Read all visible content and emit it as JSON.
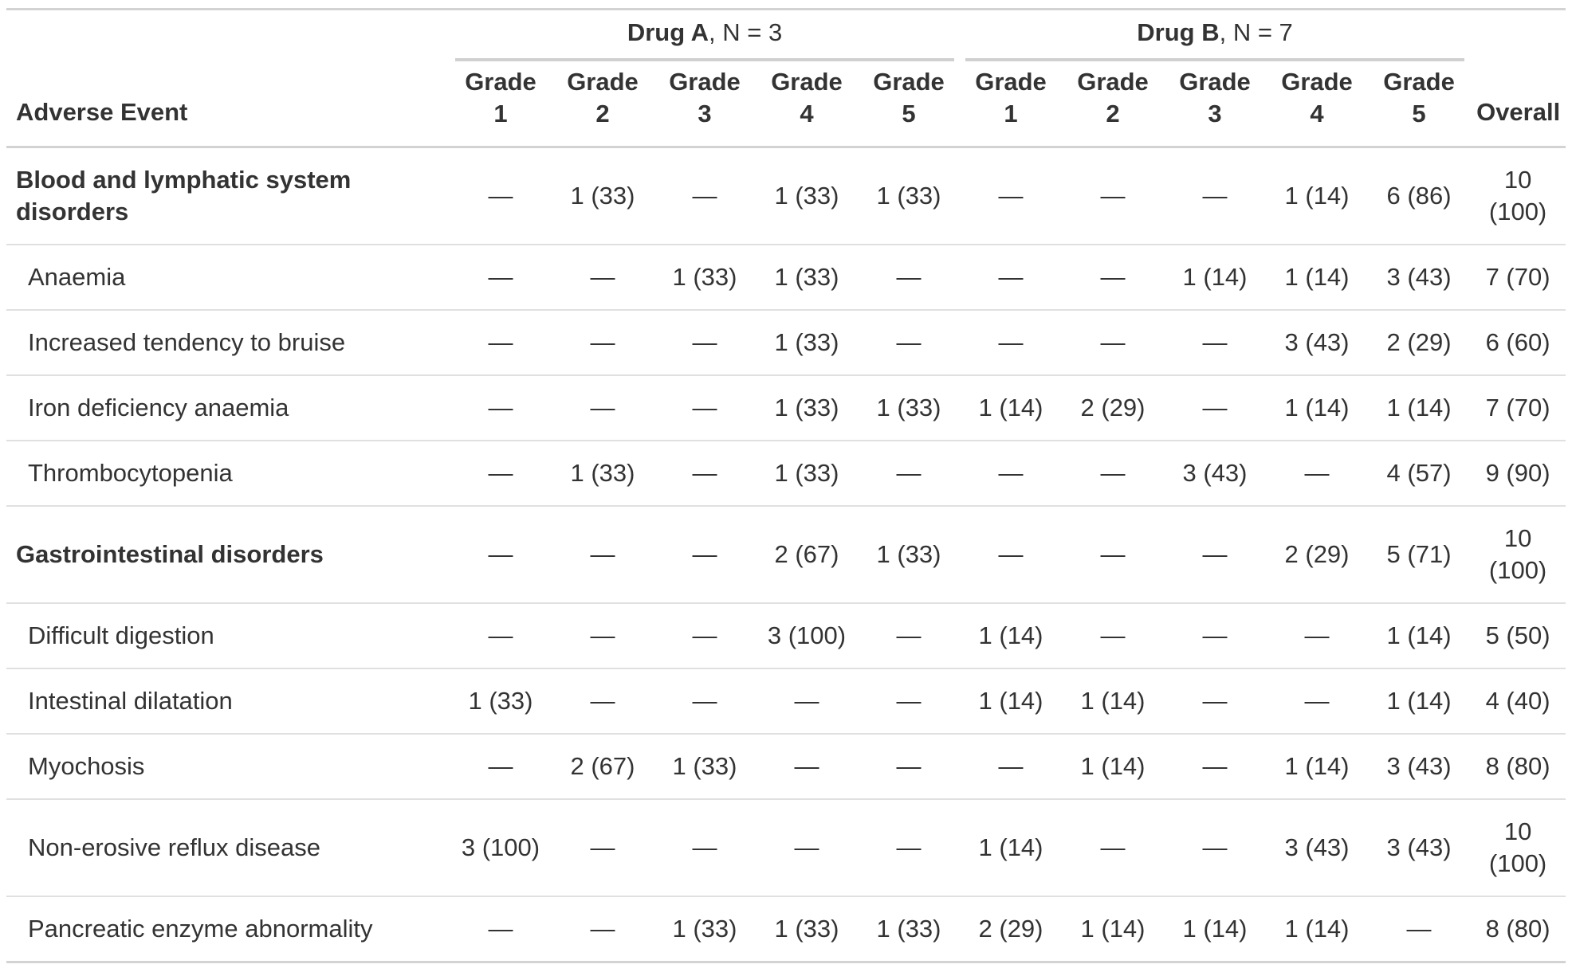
{
  "colors": {
    "text": "#333333",
    "major_rule": "#d3d3d3",
    "row_divider": "#e0e0e0",
    "spanner_rule": "#d0d0d0"
  },
  "chart_data": {
    "type": "table",
    "stub_header": "Adverse Event",
    "overall_header": "Overall",
    "grade_word": "Grade",
    "grade_numbers": [
      "1",
      "2",
      "3",
      "4",
      "5",
      "1",
      "2",
      "3",
      "4",
      "5"
    ],
    "spanners": [
      {
        "label_bold": "Drug A",
        "label_rest": ", N = 3"
      },
      {
        "label_bold": "Drug B",
        "label_rest": ", N = 7"
      }
    ],
    "rows": [
      {
        "label": "Blood and lymphatic system disorders",
        "group": true,
        "values": [
          "—",
          "1 (33)",
          "—",
          "1 (33)",
          "1 (33)",
          "—",
          "—",
          "—",
          "1 (14)",
          "6 (86)",
          "10 (100)"
        ]
      },
      {
        "label": "Anaemia",
        "group": false,
        "values": [
          "—",
          "—",
          "1 (33)",
          "1 (33)",
          "—",
          "—",
          "—",
          "1 (14)",
          "1 (14)",
          "3 (43)",
          "7 (70)"
        ]
      },
      {
        "label": "Increased tendency to bruise",
        "group": false,
        "values": [
          "—",
          "—",
          "—",
          "1 (33)",
          "—",
          "—",
          "—",
          "—",
          "3 (43)",
          "2 (29)",
          "6 (60)"
        ]
      },
      {
        "label": "Iron deficiency anaemia",
        "group": false,
        "values": [
          "—",
          "—",
          "—",
          "1 (33)",
          "1 (33)",
          "1 (14)",
          "2 (29)",
          "—",
          "1 (14)",
          "1 (14)",
          "7 (70)"
        ]
      },
      {
        "label": "Thrombocytopenia",
        "group": false,
        "values": [
          "—",
          "1 (33)",
          "—",
          "1 (33)",
          "—",
          "—",
          "—",
          "3 (43)",
          "—",
          "4 (57)",
          "9 (90)"
        ]
      },
      {
        "label": "Gastrointestinal disorders",
        "group": true,
        "values": [
          "—",
          "—",
          "—",
          "2 (67)",
          "1 (33)",
          "—",
          "—",
          "—",
          "2 (29)",
          "5 (71)",
          "10 (100)"
        ]
      },
      {
        "label": "Difficult digestion",
        "group": false,
        "values": [
          "—",
          "—",
          "—",
          "3 (100)",
          "—",
          "1 (14)",
          "—",
          "—",
          "—",
          "1 (14)",
          "5 (50)"
        ]
      },
      {
        "label": "Intestinal dilatation",
        "group": false,
        "values": [
          "1 (33)",
          "—",
          "—",
          "—",
          "—",
          "1 (14)",
          "1 (14)",
          "—",
          "—",
          "1 (14)",
          "4 (40)"
        ]
      },
      {
        "label": "Myochosis",
        "group": false,
        "values": [
          "—",
          "2 (67)",
          "1 (33)",
          "—",
          "—",
          "—",
          "1 (14)",
          "—",
          "1 (14)",
          "3 (43)",
          "8 (80)"
        ]
      },
      {
        "label": "Non-erosive reflux disease",
        "group": false,
        "values": [
          "3 (100)",
          "—",
          "—",
          "—",
          "—",
          "1 (14)",
          "—",
          "—",
          "3 (43)",
          "3 (43)",
          "10 (100)"
        ]
      },
      {
        "label": "Pancreatic enzyme abnormality",
        "group": false,
        "values": [
          "—",
          "—",
          "1 (33)",
          "1 (33)",
          "1 (33)",
          "2 (29)",
          "1 (14)",
          "1 (14)",
          "1 (14)",
          "—",
          "8 (80)"
        ]
      }
    ]
  }
}
